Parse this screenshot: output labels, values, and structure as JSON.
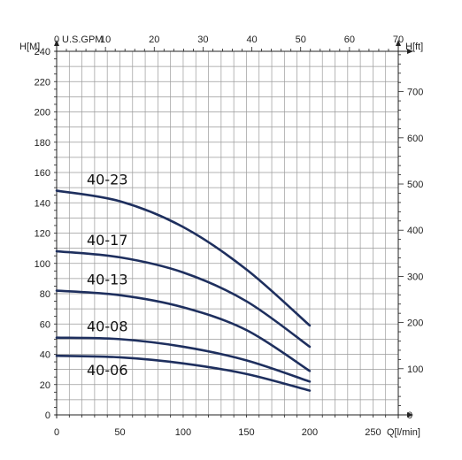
{
  "chart_data": {
    "type": "line",
    "x_axis_bottom": {
      "label": "Q[l/min]",
      "range": [
        0,
        270
      ],
      "ticks": [
        0,
        50,
        100,
        150,
        200,
        250
      ]
    },
    "x_axis_top": {
      "label": "U.S.GPM",
      "range": [
        0,
        70
      ],
      "ticks": [
        0,
        10,
        20,
        30,
        40,
        50,
        60,
        70
      ]
    },
    "y_axis_left": {
      "label": "H[M]",
      "range": [
        0,
        240
      ],
      "ticks": [
        0,
        20,
        40,
        60,
        80,
        100,
        120,
        140,
        160,
        180,
        200,
        220,
        240
      ]
    },
    "y_axis_right": {
      "label": "H[ft]",
      "range": [
        0,
        787.4
      ],
      "ticks": [
        0,
        100,
        200,
        300,
        400,
        500,
        600,
        700
      ]
    },
    "grid": true,
    "series": [
      {
        "name": "40-23",
        "color": "#1e2f5e",
        "x": [
          0,
          50,
          100,
          150,
          200
        ],
        "y": [
          148,
          141,
          124,
          96,
          59
        ]
      },
      {
        "name": "40-17",
        "color": "#1e2f5e",
        "x": [
          0,
          50,
          100,
          150,
          200
        ],
        "y": [
          108,
          104,
          94,
          75,
          45
        ]
      },
      {
        "name": "40-13",
        "color": "#1e2f5e",
        "x": [
          0,
          50,
          100,
          150,
          200
        ],
        "y": [
          82,
          79,
          71,
          56,
          29
        ]
      },
      {
        "name": "40-08",
        "color": "#1e2f5e",
        "x": [
          0,
          50,
          100,
          150,
          200
        ],
        "y": [
          51,
          50,
          45,
          36,
          22
        ]
      },
      {
        "name": "40-06",
        "color": "#1e2f5e",
        "x": [
          0,
          50,
          100,
          150,
          200
        ],
        "y": [
          39,
          38,
          34,
          27,
          16
        ]
      }
    ]
  }
}
